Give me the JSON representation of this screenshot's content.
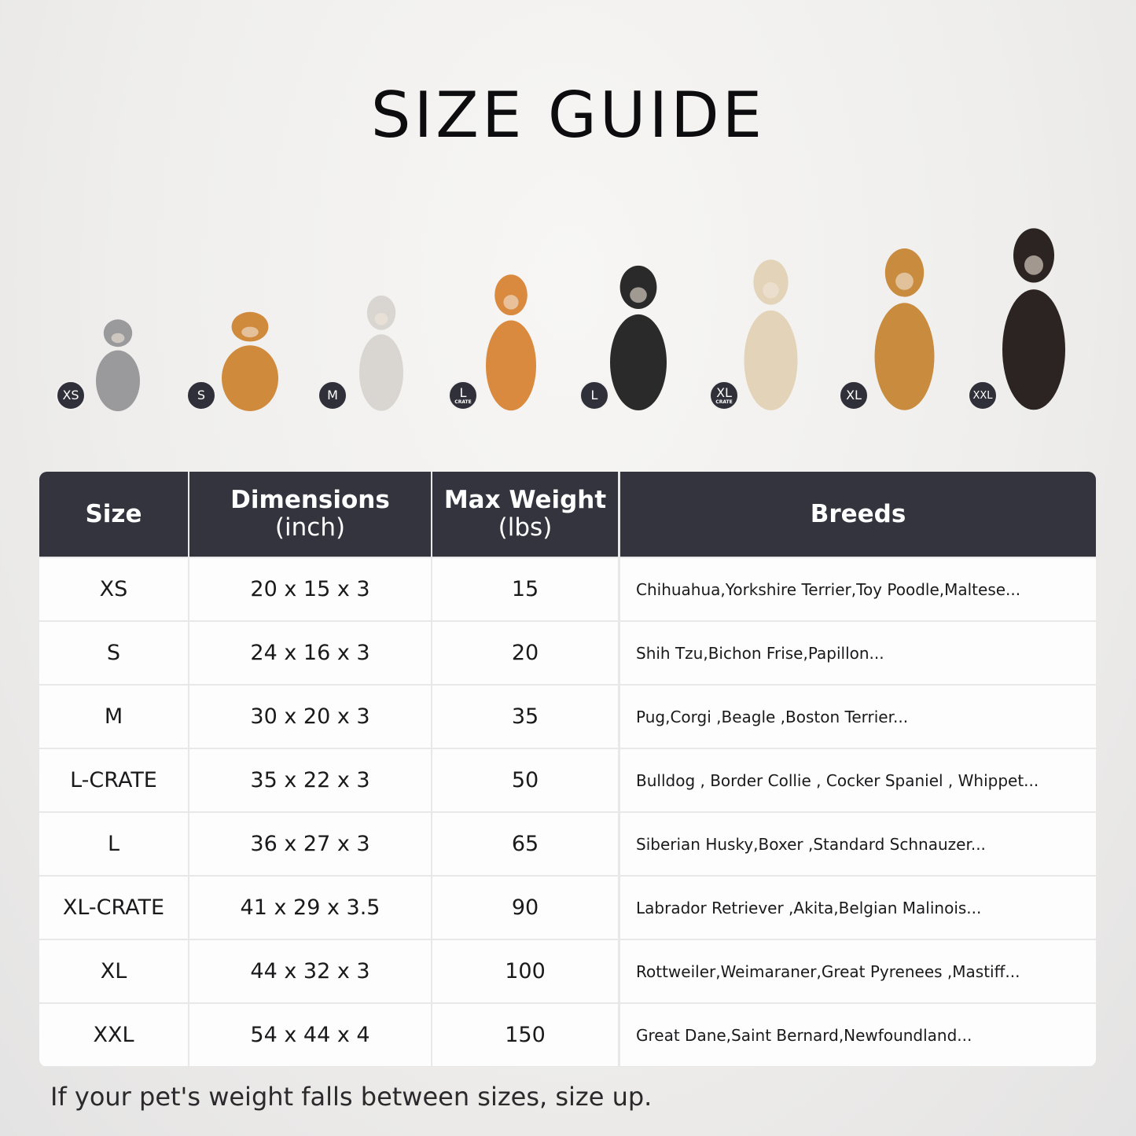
{
  "title": "SIZE GUIDE",
  "pets": [
    {
      "badge": "XS",
      "sub": "",
      "animal": "cat",
      "color": "#9a9a9c"
    },
    {
      "badge": "S",
      "sub": "",
      "animal": "pomeranian",
      "color": "#d08a3c"
    },
    {
      "badge": "M",
      "sub": "",
      "animal": "french-bulldog",
      "color": "#d9d6d2"
    },
    {
      "badge": "L",
      "sub": "CRATE",
      "animal": "shiba-inu",
      "color": "#d98a3e"
    },
    {
      "badge": "L",
      "sub": "",
      "animal": "border-collie",
      "color": "#2a2a2a"
    },
    {
      "badge": "XL",
      "sub": "CRATE",
      "animal": "labrador",
      "color": "#e3d3b8"
    },
    {
      "badge": "XL",
      "sub": "",
      "animal": "golden-retriever",
      "color": "#c98b3e"
    },
    {
      "badge": "XXL",
      "sub": "",
      "animal": "doberman",
      "color": "#2b2422"
    }
  ],
  "table": {
    "headers": {
      "size": "Size",
      "dimensions": "Dimensions",
      "dimensions_unit": "(inch)",
      "weight": "Max Weight",
      "weight_unit": "(lbs)",
      "breeds": "Breeds"
    },
    "rows": [
      {
        "size": "XS",
        "dimensions": "20 x 15 x 3",
        "weight": "15",
        "breeds": "Chihuahua,Yorkshire Terrier,Toy Poodle,Maltese..."
      },
      {
        "size": "S",
        "dimensions": "24 x 16 x 3",
        "weight": "20",
        "breeds": "Shih Tzu,Bichon Frise,Papillon..."
      },
      {
        "size": "M",
        "dimensions": "30 x 20 x 3",
        "weight": "35",
        "breeds": "Pug,Corgi ,Beagle ,Boston Terrier..."
      },
      {
        "size": "L-CRATE",
        "dimensions": "35 x 22 x 3",
        "weight": "50",
        "breeds": "Bulldog , Border Collie , Cocker Spaniel , Whippet..."
      },
      {
        "size": "L",
        "dimensions": "36 x 27 x 3",
        "weight": "65",
        "breeds": "Siberian Husky,Boxer ,Standard Schnauzer..."
      },
      {
        "size": "XL-CRATE",
        "dimensions": "41 x 29 x 3.5",
        "weight": "90",
        "breeds": "Labrador Retriever ,Akita,Belgian Malinois..."
      },
      {
        "size": "XL",
        "dimensions": "44 x 32 x 3",
        "weight": "100",
        "breeds": "Rottweiler,Weimaraner,Great Pyrenees ,Mastiff..."
      },
      {
        "size": "XXL",
        "dimensions": "54 x 44 x 4",
        "weight": "150",
        "breeds": "Great Dane,Saint Bernard,Newfoundland..."
      }
    ]
  },
  "note": "If your pet's weight falls between sizes, size up.",
  "colors": {
    "header_bg": "#33343e",
    "badge_bg": "#2f3039"
  }
}
